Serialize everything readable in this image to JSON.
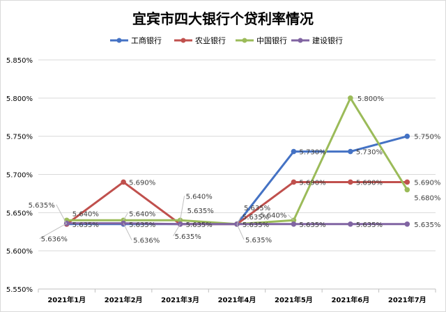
{
  "chart_data": {
    "type": "line",
    "title": "宜宾市四大银行个贷利率情况",
    "categories": [
      "2021年1月",
      "2021年2月",
      "2021年3月",
      "2021年4月",
      "2021年5月",
      "2021年6月",
      "2021年7月"
    ],
    "y_ticks": [
      "5.550%",
      "5.600%",
      "5.650%",
      "5.700%",
      "5.750%",
      "5.800%",
      "5.850%"
    ],
    "ylim": [
      5.55,
      5.85
    ],
    "grid": true,
    "legend_position": "top",
    "series": [
      {
        "name": "工商银行",
        "color": "#4472c4",
        "values": [
          5.635,
          5.635,
          5.635,
          5.635,
          5.73,
          5.73,
          5.75
        ],
        "labels": [
          "5.635%",
          "5.635%",
          "5.635%",
          "5.635%",
          "5.730%",
          "5.730%",
          "5.750%"
        ]
      },
      {
        "name": "农业银行",
        "color": "#c0504d",
        "values": [
          5.635,
          5.69,
          5.635,
          5.635,
          5.69,
          5.69,
          5.69
        ],
        "labels": [
          "5.635%",
          "5.690%",
          "5.635%",
          "5.635%",
          "5.690%",
          "5.690%",
          "5.690%"
        ]
      },
      {
        "name": "中国银行",
        "color": "#9bbb59",
        "values": [
          5.64,
          5.64,
          5.64,
          5.635,
          5.64,
          5.8,
          5.68
        ],
        "labels": [
          "5.640%",
          "5.640%",
          "5.640%",
          "5.635%",
          "5.640%",
          "5.800%",
          "5.680%"
        ]
      },
      {
        "name": "建设银行",
        "color": "#8064a2",
        "values": [
          5.636,
          5.636,
          5.635,
          5.635,
          5.635,
          5.635,
          5.635
        ],
        "labels": [
          "5.636%",
          "5.636%",
          "5.635%",
          "5.635%",
          "5.635%",
          "5.635%",
          "5.635%"
        ]
      }
    ]
  }
}
